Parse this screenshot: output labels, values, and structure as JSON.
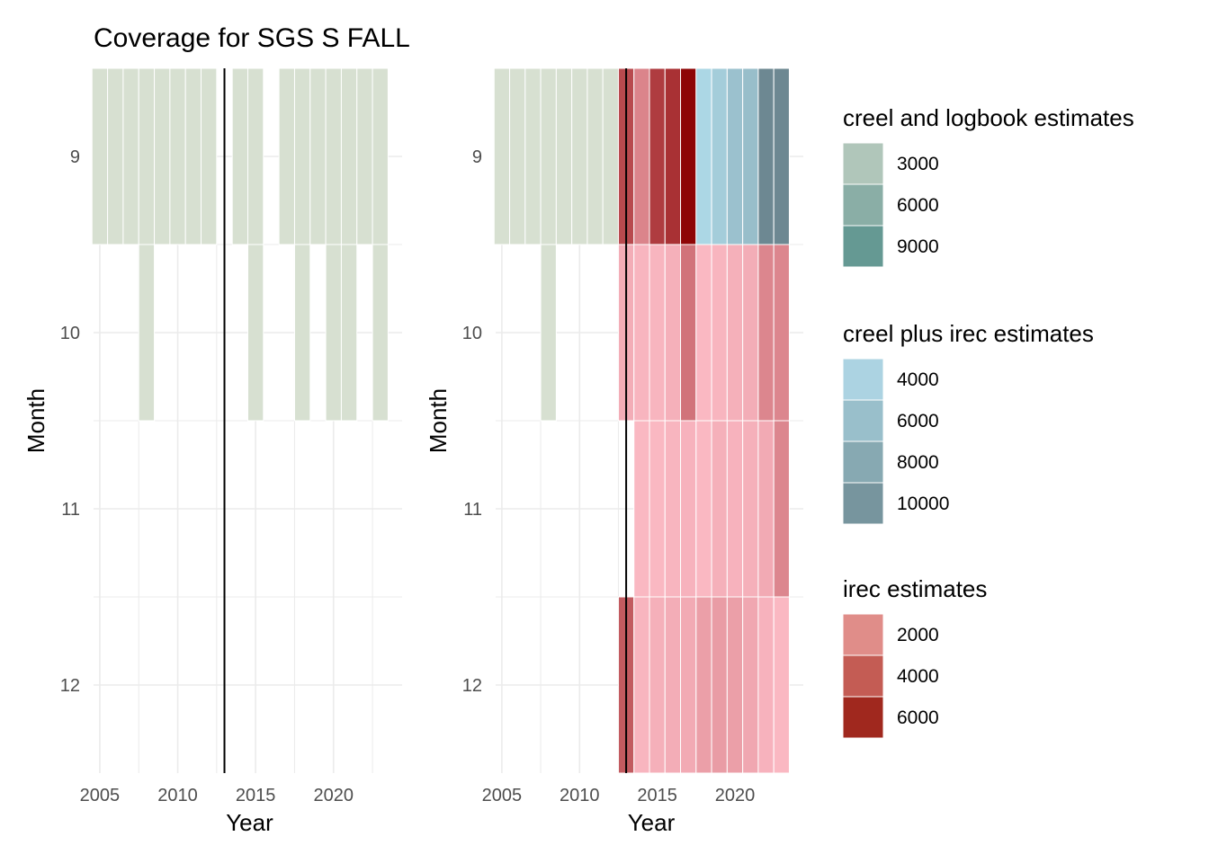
{
  "chart_data": {
    "title": "Coverage for SGS S FALL",
    "type": "heatmap",
    "years": [
      2005,
      2006,
      2007,
      2008,
      2009,
      2010,
      2011,
      2012,
      2013,
      2014,
      2015,
      2016,
      2017,
      2018,
      2019,
      2020,
      2021,
      2022,
      2023
    ],
    "months": [
      9,
      10,
      11,
      12
    ],
    "xlabel": "Year",
    "ylabel": "Month",
    "x_ticks": [
      2005,
      2010,
      2015,
      2020
    ],
    "y_ticks": [
      9,
      10,
      11,
      12
    ],
    "xlim": [
      2004.6,
      2024.4
    ],
    "ylim": [
      8.5,
      12.5
    ],
    "reference_year": 2013,
    "grid": true,
    "legend_position": "right",
    "panels": [
      {
        "panel": "left",
        "cells": [
          {
            "year": 2005,
            "month": 9,
            "category": "coverage"
          },
          {
            "year": 2006,
            "month": 9,
            "category": "coverage"
          },
          {
            "year": 2007,
            "month": 9,
            "category": "coverage"
          },
          {
            "year": 2008,
            "month": 9,
            "category": "coverage"
          },
          {
            "year": 2009,
            "month": 9,
            "category": "coverage"
          },
          {
            "year": 2010,
            "month": 9,
            "category": "coverage"
          },
          {
            "year": 2011,
            "month": 9,
            "category": "coverage"
          },
          {
            "year": 2012,
            "month": 9,
            "category": "coverage"
          },
          {
            "year": 2014,
            "month": 9,
            "category": "coverage"
          },
          {
            "year": 2015,
            "month": 9,
            "category": "coverage"
          },
          {
            "year": 2017,
            "month": 9,
            "category": "coverage"
          },
          {
            "year": 2018,
            "month": 9,
            "category": "coverage"
          },
          {
            "year": 2019,
            "month": 9,
            "category": "coverage"
          },
          {
            "year": 2020,
            "month": 9,
            "category": "coverage"
          },
          {
            "year": 2021,
            "month": 9,
            "category": "coverage"
          },
          {
            "year": 2022,
            "month": 9,
            "category": "coverage"
          },
          {
            "year": 2023,
            "month": 9,
            "category": "coverage"
          },
          {
            "year": 2008,
            "month": 10,
            "category": "coverage"
          },
          {
            "year": 2015,
            "month": 10,
            "category": "coverage"
          },
          {
            "year": 2018,
            "month": 10,
            "category": "coverage"
          },
          {
            "year": 2020,
            "month": 10,
            "category": "coverage"
          },
          {
            "year": 2021,
            "month": 10,
            "category": "coverage"
          },
          {
            "year": 2023,
            "month": 10,
            "category": "coverage"
          }
        ]
      },
      {
        "panel": "right",
        "cells": [
          {
            "year": 2005,
            "month": 9,
            "category": "coverage"
          },
          {
            "year": 2006,
            "month": 9,
            "category": "coverage"
          },
          {
            "year": 2007,
            "month": 9,
            "category": "coverage"
          },
          {
            "year": 2008,
            "month": 9,
            "category": "coverage"
          },
          {
            "year": 2009,
            "month": 9,
            "category": "coverage"
          },
          {
            "year": 2010,
            "month": 9,
            "category": "coverage"
          },
          {
            "year": 2011,
            "month": 9,
            "category": "coverage"
          },
          {
            "year": 2012,
            "month": 9,
            "category": "coverage"
          },
          {
            "year": 2008,
            "month": 10,
            "category": "coverage"
          },
          {
            "year": 2013,
            "month": 9,
            "category": "irec",
            "value": 4300
          },
          {
            "year": 2014,
            "month": 9,
            "category": "irec",
            "value": 2200
          },
          {
            "year": 2015,
            "month": 9,
            "category": "irec",
            "value": 4800
          },
          {
            "year": 2016,
            "month": 9,
            "category": "irec",
            "value": 5200
          },
          {
            "year": 2017,
            "month": 9,
            "category": "irec",
            "value": 6800
          },
          {
            "year": 2018,
            "month": 9,
            "category": "creel_irec",
            "value": 3600
          },
          {
            "year": 2019,
            "month": 9,
            "category": "creel_irec",
            "value": 4500
          },
          {
            "year": 2020,
            "month": 9,
            "category": "creel_irec",
            "value": 5500
          },
          {
            "year": 2021,
            "month": 9,
            "category": "creel_irec",
            "value": 5800
          },
          {
            "year": 2022,
            "month": 9,
            "category": "creel_irec",
            "value": 10500
          },
          {
            "year": 2023,
            "month": 9,
            "category": "creel_irec",
            "value": 10500
          },
          {
            "year": 2013,
            "month": 10,
            "category": "irec",
            "value": 700
          },
          {
            "year": 2014,
            "month": 10,
            "category": "irec",
            "value": 400
          },
          {
            "year": 2015,
            "month": 10,
            "category": "irec",
            "value": 400
          },
          {
            "year": 2016,
            "month": 10,
            "category": "irec",
            "value": 600
          },
          {
            "year": 2017,
            "month": 10,
            "category": "irec",
            "value": 2800
          },
          {
            "year": 2018,
            "month": 10,
            "category": "irec",
            "value": 300
          },
          {
            "year": 2019,
            "month": 10,
            "category": "irec",
            "value": 400
          },
          {
            "year": 2020,
            "month": 10,
            "category": "irec",
            "value": 600
          },
          {
            "year": 2021,
            "month": 10,
            "category": "irec",
            "value": 700
          },
          {
            "year": 2022,
            "month": 10,
            "category": "irec",
            "value": 2100
          },
          {
            "year": 2023,
            "month": 10,
            "category": "irec",
            "value": 2100
          },
          {
            "year": 2014,
            "month": 11,
            "category": "irec",
            "value": 300
          },
          {
            "year": 2015,
            "month": 11,
            "category": "irec",
            "value": 300
          },
          {
            "year": 2016,
            "month": 11,
            "category": "irec",
            "value": 400
          },
          {
            "year": 2017,
            "month": 11,
            "category": "irec",
            "value": 500
          },
          {
            "year": 2018,
            "month": 11,
            "category": "irec",
            "value": 300
          },
          {
            "year": 2019,
            "month": 11,
            "category": "irec",
            "value": 600
          },
          {
            "year": 2020,
            "month": 11,
            "category": "irec",
            "value": 500
          },
          {
            "year": 2021,
            "month": 11,
            "category": "irec",
            "value": 600
          },
          {
            "year": 2022,
            "month": 11,
            "category": "irec",
            "value": 800
          },
          {
            "year": 2023,
            "month": 11,
            "category": "irec",
            "value": 2100
          },
          {
            "year": 2013,
            "month": 12,
            "category": "irec",
            "value": 3700
          },
          {
            "year": 2014,
            "month": 12,
            "category": "irec",
            "value": 400
          },
          {
            "year": 2015,
            "month": 12,
            "category": "irec",
            "value": 600
          },
          {
            "year": 2016,
            "month": 12,
            "category": "irec",
            "value": 700
          },
          {
            "year": 2017,
            "month": 12,
            "category": "irec",
            "value": 800
          },
          {
            "year": 2018,
            "month": 12,
            "category": "irec",
            "value": 1200
          },
          {
            "year": 2019,
            "month": 12,
            "category": "irec",
            "value": 1300
          },
          {
            "year": 2020,
            "month": 12,
            "category": "irec",
            "value": 1200
          },
          {
            "year": 2021,
            "month": 12,
            "category": "irec",
            "value": 900
          },
          {
            "year": 2022,
            "month": 12,
            "category": "irec",
            "value": 500
          },
          {
            "year": 2023,
            "month": 12,
            "category": "irec",
            "value": 300
          }
        ]
      }
    ],
    "legends": [
      {
        "title": "creel and logbook estimates",
        "entries": [
          {
            "label": "3000",
            "color": "#b0c6ba"
          },
          {
            "label": "6000",
            "color": "#8aaea6"
          },
          {
            "label": "9000",
            "color": "#659993"
          }
        ]
      },
      {
        "title": "creel plus irec estimates",
        "entries": [
          {
            "label": "4000",
            "color": "#acd3e2"
          },
          {
            "label": "6000",
            "color": "#99bfcb"
          },
          {
            "label": "8000",
            "color": "#87a9b2"
          },
          {
            "label": "10000",
            "color": "#77959e"
          }
        ]
      },
      {
        "title": "irec estimates",
        "entries": [
          {
            "label": "2000",
            "color": "#e08d89"
          },
          {
            "label": "4000",
            "color": "#c45c54"
          },
          {
            "label": "6000",
            "color": "#a0281e"
          }
        ]
      }
    ],
    "colors": {
      "coverage": "#d7e0d1",
      "grid": "#ebebeb",
      "reference_line": "#000000",
      "irec_low": "#ffc0cb",
      "irec_high": "#8b0000",
      "creel_irec_low": "#add8e6",
      "creel_irec_high": "#68828c"
    }
  }
}
